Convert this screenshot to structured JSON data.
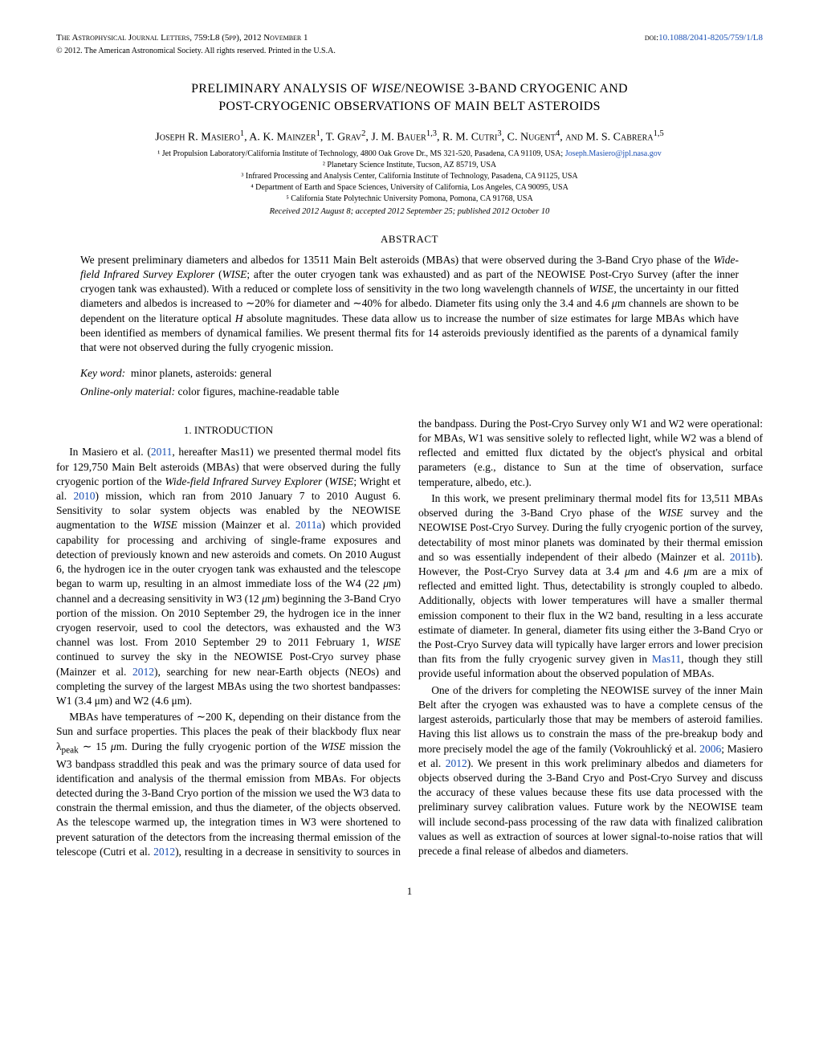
{
  "header": {
    "journal": "The Astrophysical Journal Letters, 759:L8 (5pp), 2012 November 1",
    "doi_label": "doi:",
    "doi": "10.1088/2041-8205/759/1/L8",
    "copyright": "© 2012. The American Astronomical Society. All rights reserved. Printed in the U.S.A."
  },
  "title": "PRELIMINARY ANALYSIS OF WISE/NEOWISE 3-BAND CRYOGENIC AND POST-CRYOGENIC OBSERVATIONS OF MAIN BELT ASTEROIDS",
  "authors_html": "Joseph R. Masiero<sup>1</sup>, A. K. Mainzer<sup>1</sup>, T. Grav<sup>2</sup>, J. M. Bauer<sup>1,3</sup>, R. M. Cutri<sup>3</sup>, C. Nugent<sup>4</sup>, and M. S. Cabrera<sup>1,5</sup>",
  "affiliations": [
    "¹ Jet Propulsion Laboratory/California Institute of Technology, 4800 Oak Grove Dr., MS 321-520, Pasadena, CA 91109, USA;",
    "² Planetary Science Institute, Tucson, AZ 85719, USA",
    "³ Infrared Processing and Analysis Center, California Institute of Technology, Pasadena, CA 91125, USA",
    "⁴ Department of Earth and Space Sciences, University of California, Los Angeles, CA 90095, USA",
    "⁵ California State Polytechnic University Pomona, Pomona, CA 91768, USA"
  ],
  "email": "Joseph.Masiero@jpl.nasa.gov",
  "received": "Received 2012 August 8; accepted 2012 September 25; published 2012 October 10",
  "abstract_heading": "ABSTRACT",
  "abstract": "We present preliminary diameters and albedos for 13511 Main Belt asteroids (MBAs) that were observed during the 3-Band Cryo phase of the Wide-field Infrared Survey Explorer (WISE; after the outer cryogen tank was exhausted) and as part of the NEOWISE Post-Cryo Survey (after the inner cryogen tank was exhausted). With a reduced or complete loss of sensitivity in the two long wavelength channels of WISE, the uncertainty in our fitted diameters and albedos is increased to ∼20% for diameter and ∼40% for albedo. Diameter fits using only the 3.4 and 4.6 μm channels are shown to be dependent on the literature optical H absolute magnitudes. These data allow us to increase the number of size estimates for large MBAs which have been identified as members of dynamical families. We present thermal fits for 14 asteroids previously identified as the parents of a dynamical family that were not observed during the fully cryogenic mission.",
  "keywords_label": "Key word:",
  "keywords": "minor planets, asteroids: general",
  "online_label": "Online-only material:",
  "online_text": "color figures, machine-readable table",
  "section1_heading": "1. INTRODUCTION",
  "body": {
    "p1a": "In Masiero et al. (",
    "p1_ref1": "2011",
    "p1b": ", hereafter Mas11) we presented thermal model fits for 129,750 Main Belt asteroids (MBAs) that were observed during the fully cryogenic portion of the ",
    "p1c": "Wide-field Infrared Survey Explorer",
    "p1d": " (WISE; Wright et al. ",
    "p1_ref2": "2010",
    "p1e": ") mission, which ran from 2010 January 7 to 2010 August 6. Sensitivity to solar system objects was enabled by the NEOWISE augmentation to the WISE mission (Mainzer et al. ",
    "p1_ref3": "2011a",
    "p1f": ") which provided capability for processing and archiving of single-frame exposures and detection of previously known and new asteroids and comets. On 2010 August 6, the hydrogen ice in the outer cryogen tank was exhausted and the telescope began to warm up, resulting in an almost immediate loss of the W4 (22 μm) channel and a decreasing sensitivity in W3 (12 μm) beginning the 3-Band Cryo portion of the mission. On 2010 September 29, the hydrogen ice in the inner cryogen reservoir, used to cool the detectors, was exhausted and the W3 channel was lost. From 2010 September 29 to 2011 February 1, WISE continued to survey the sky in the NEOWISE Post-Cryo survey phase (Mainzer et al. ",
    "p1_ref4": "2012",
    "p1g": "), searching for new near-Earth objects (NEOs) and completing the survey of the largest MBAs using the two shortest bandpasses: W1 (3.4 μm) and W2 (4.6 μm).",
    "p2a": "MBAs have temperatures of ∼200 K, depending on their distance from the Sun and surface properties. This places the peak of their blackbody flux near λ",
    "p2b": " ∼ 15 μm. During the fully cryogenic portion of the WISE mission the W3 bandpass straddled this peak and was the primary source of data used for identification and analysis of the thermal emission from MBAs. For objects detected during the 3-Band Cryo portion of the mission we used the W3 data to constrain the thermal emission, and thus the diameter, of the objects observed. As the telescope warmed up, the integration times in W3 were shortened to prevent saturation of the detectors from the increasing thermal emission of the telescope (Cutri et al. ",
    "p2_ref1": "2012",
    "p2c": "), resulting in a decrease in sensitivity to sources in the bandpass. During the Post-Cryo Survey only W1 and W2 were operational: for MBAs, W1 was sensitive solely to reflected light, while W2 was a blend of reflected and emitted flux dictated by the object's physical and orbital parameters (e.g., distance to Sun at the time of observation, surface temperature, albedo, etc.).",
    "p3a": "In this work, we present preliminary thermal model fits for 13,511 MBAs observed during the 3-Band Cryo phase of the WISE survey and the NEOWISE Post-Cryo Survey. During the fully cryogenic portion of the survey, detectability of most minor planets was dominated by their thermal emission and so was essentially independent of their albedo (Mainzer et al. ",
    "p3_ref1": "2011b",
    "p3b": "). However, the Post-Cryo Survey data at 3.4 μm and 4.6 μm are a mix of reflected and emitted light. Thus, detectability is strongly coupled to albedo. Additionally, objects with lower temperatures will have a smaller thermal emission component to their flux in the W2 band, resulting in a less accurate estimate of diameter. In general, diameter fits using either the 3-Band Cryo or the Post-Cryo Survey data will typically have larger errors and lower precision than fits from the fully cryogenic survey given in ",
    "p3_ref2": "Mas11",
    "p3c": ", though they still provide useful information about the observed population of MBAs.",
    "p4a": "One of the drivers for completing the NEOWISE survey of the inner Main Belt after the cryogen was exhausted was to have a complete census of the largest asteroids, particularly those that may be members of asteroid families. Having this list allows us to constrain the mass of the pre-breakup body and more precisely model the age of the family (Vokrouhlický et al. ",
    "p4_ref1": "2006",
    "p4b": "; Masiero et al. ",
    "p4_ref2": "2012",
    "p4c": "). We present in this work preliminary albedos and diameters for objects observed during the 3-Band Cryo and Post-Cryo Survey and discuss the accuracy of these values because these fits use data processed with the preliminary survey calibration values. Future work by the NEOWISE team will include second-pass processing of the raw data with finalized calibration values as well as extraction of sources at lower signal-to-noise ratios that will precede a final release of albedos and diameters."
  },
  "page_number": "1",
  "colors": {
    "link": "#1a4fb3",
    "text": "#000000",
    "background": "#ffffff"
  }
}
